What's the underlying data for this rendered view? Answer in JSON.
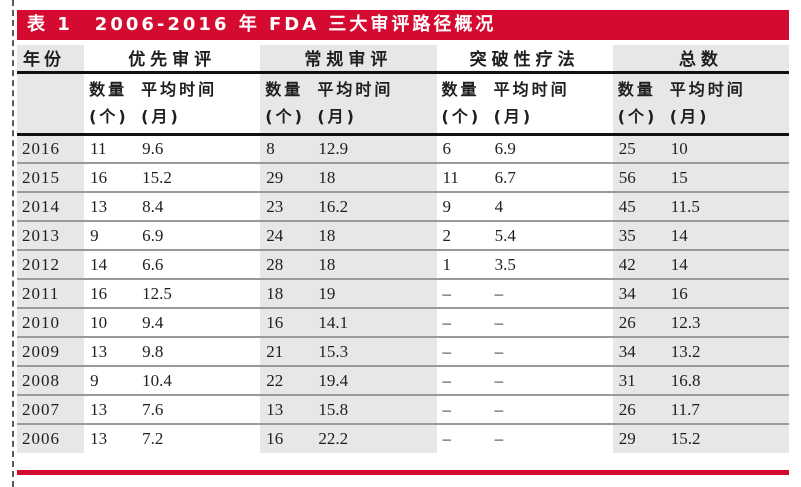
{
  "title_bar": {
    "label": "表 1",
    "title": "2006-2016 年 FDA 三大审评路径概况"
  },
  "table": {
    "year_header": "年份",
    "groups": [
      {
        "name": "优先审评"
      },
      {
        "name": "常规审评"
      },
      {
        "name": "突破性疗法"
      },
      {
        "name": "总数"
      }
    ],
    "subheader": {
      "qty_line1": "数量",
      "qty_line2": "(个)",
      "time_line1": "平均时间",
      "time_line2": "(月)"
    },
    "rows": [
      {
        "year": "2016",
        "cells": [
          "11",
          "9.6",
          "8",
          "12.9",
          "6",
          "6.9",
          "25",
          "10"
        ]
      },
      {
        "year": "2015",
        "cells": [
          "16",
          "15.2",
          "29",
          "18",
          "11",
          "6.7",
          "56",
          "15"
        ]
      },
      {
        "year": "2014",
        "cells": [
          "13",
          "8.4",
          "23",
          "16.2",
          "9",
          "4",
          "45",
          "11.5"
        ]
      },
      {
        "year": "2013",
        "cells": [
          "9",
          "6.9",
          "24",
          "18",
          "2",
          "5.4",
          "35",
          "14"
        ]
      },
      {
        "year": "2012",
        "cells": [
          "14",
          "6.6",
          "28",
          "18",
          "1",
          "3.5",
          "42",
          "14"
        ]
      },
      {
        "year": "2011",
        "cells": [
          "16",
          "12.5",
          "18",
          "19",
          "–",
          "–",
          "34",
          "16"
        ]
      },
      {
        "year": "2010",
        "cells": [
          "10",
          "9.4",
          "16",
          "14.1",
          "–",
          "–",
          "26",
          "12.3"
        ]
      },
      {
        "year": "2009",
        "cells": [
          "13",
          "9.8",
          "21",
          "15.3",
          "–",
          "–",
          "34",
          "13.2"
        ]
      },
      {
        "year": "2008",
        "cells": [
          "9",
          "10.4",
          "22",
          "19.4",
          "–",
          "–",
          "31",
          "16.8"
        ]
      },
      {
        "year": "2007",
        "cells": [
          "13",
          "7.6",
          "13",
          "15.8",
          "–",
          "–",
          "26",
          "11.7"
        ]
      },
      {
        "year": "2006",
        "cells": [
          "13",
          "7.2",
          "16",
          "22.2",
          "–",
          "–",
          "29",
          "15.2"
        ]
      }
    ]
  },
  "colors": {
    "accent_red": "#d40a30",
    "band_gray": "#e7e7e7",
    "header_rule_black": "#111111",
    "row_line_gray": "#9a9a9a",
    "text": "#1f1f1f",
    "title_text": "#ffffff"
  }
}
